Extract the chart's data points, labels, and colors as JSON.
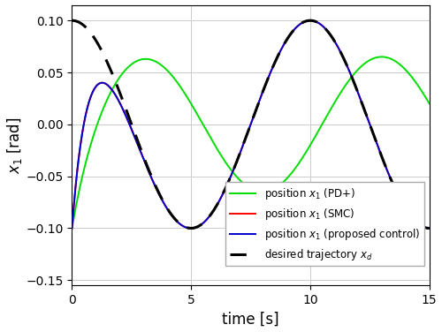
{
  "title": "",
  "xlabel": "time [s]",
  "ylabel": "$x_1$ [rad]",
  "xlim": [
    0,
    15
  ],
  "ylim": [
    -0.155,
    0.115
  ],
  "yticks": [
    -0.15,
    -0.1,
    -0.05,
    0,
    0.05,
    0.1
  ],
  "xticks": [
    0,
    5,
    10,
    15
  ],
  "line_colors": {
    "smc": "#ff0000",
    "pd": "#00dd00",
    "proposed": "#0000cc",
    "desired": "#000000"
  },
  "line_widths": {
    "smc": 1.4,
    "pd": 1.4,
    "proposed": 1.4,
    "desired": 2.2
  },
  "legend_labels": {
    "smc": "position $x_1$ (SMC)",
    "pd": "position $x_1$ (PD+)",
    "proposed": "position $x_1$ (proposed control)",
    "desired": "desired trajectory $x_d$"
  },
  "grid_color": "#cccccc",
  "background_color": "#ffffff"
}
